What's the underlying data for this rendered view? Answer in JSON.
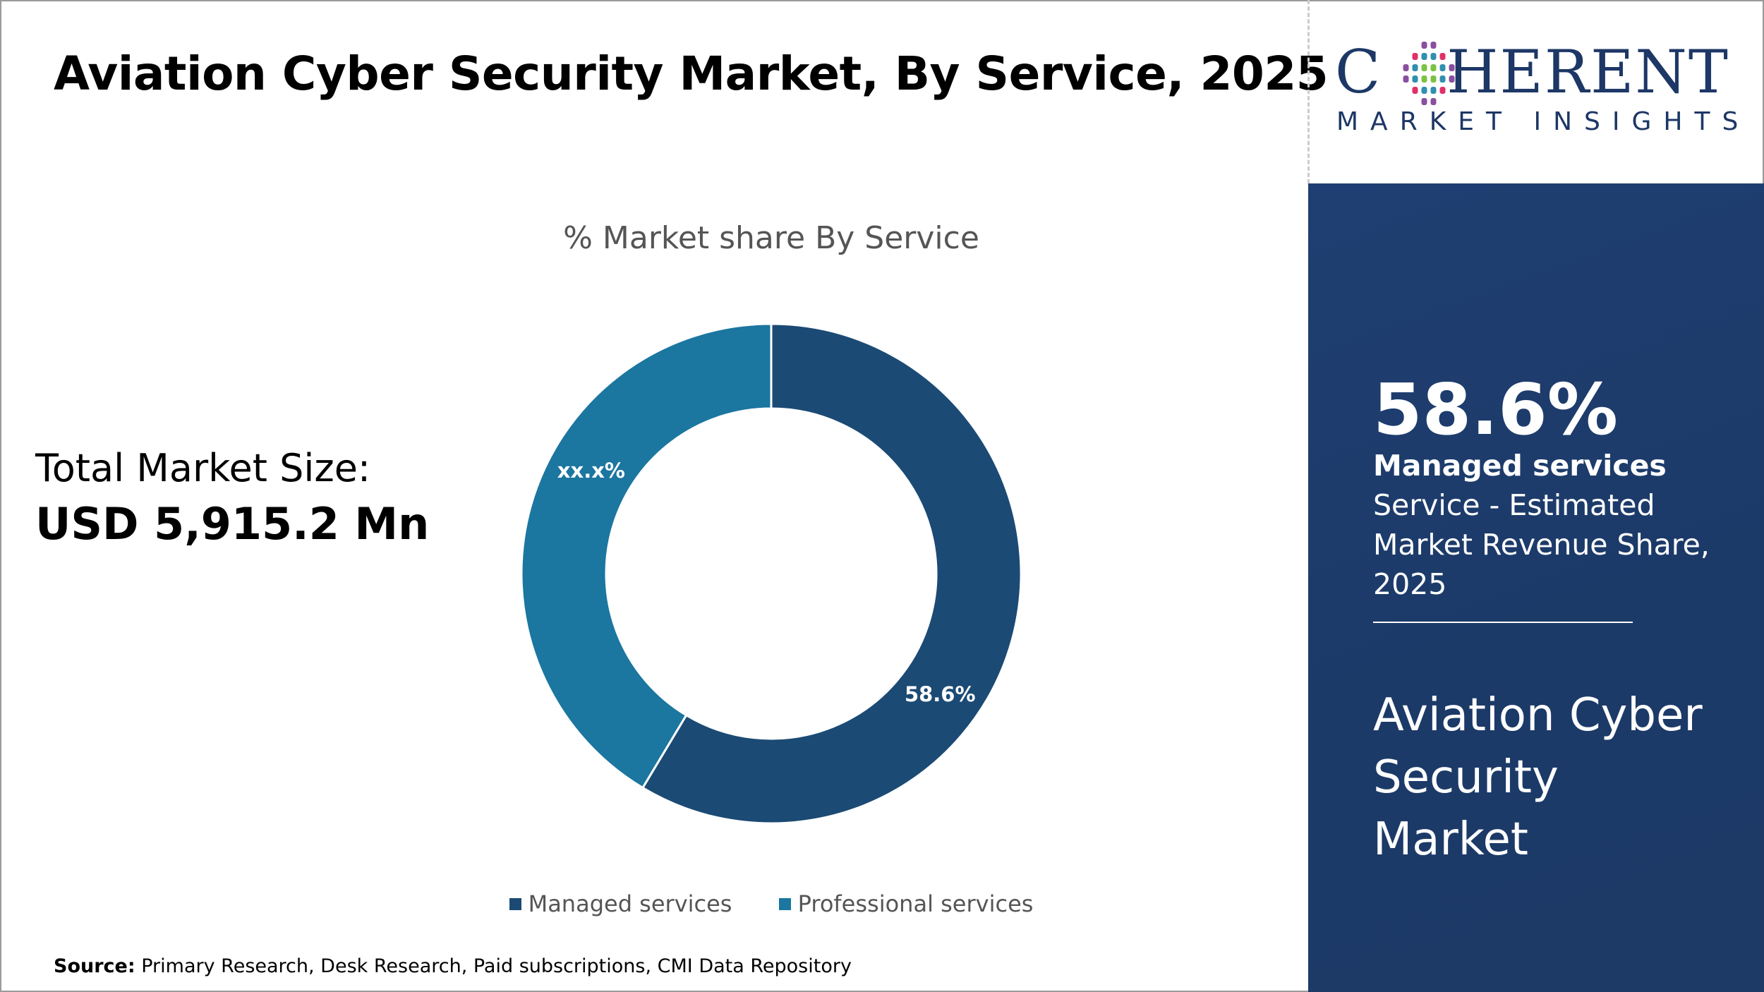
{
  "title": "Aviation Cyber Security Market, By Service, 2025",
  "logo": {
    "main": "COHERENT",
    "sub": "MARKET INSIGHTS"
  },
  "total_market": {
    "label": "Total Market Size:",
    "value": "USD 5,915.2 Mn"
  },
  "panel": {
    "percent": "58.6%",
    "segment_bold": "Managed services",
    "segment_rest": " Service - Estimated Market Revenue Share, 2025",
    "market_name": "Aviation Cyber Security Market"
  },
  "source": {
    "label": "Source:",
    "text": " Primary Research, Desk Research, Paid subscriptions, CMI Data Repository"
  },
  "colors": {
    "managed": "#1b4a74",
    "professional": "#1b76a0",
    "panel": "#1d3b6a"
  },
  "chart_data": {
    "type": "pie",
    "title": "% Market share By Service",
    "categories": [
      "Managed services",
      "Professional services"
    ],
    "values": [
      58.6,
      41.4
    ],
    "data_labels": [
      "58.6%",
      "xx.x%"
    ],
    "legend": "bottom",
    "donut": true
  }
}
